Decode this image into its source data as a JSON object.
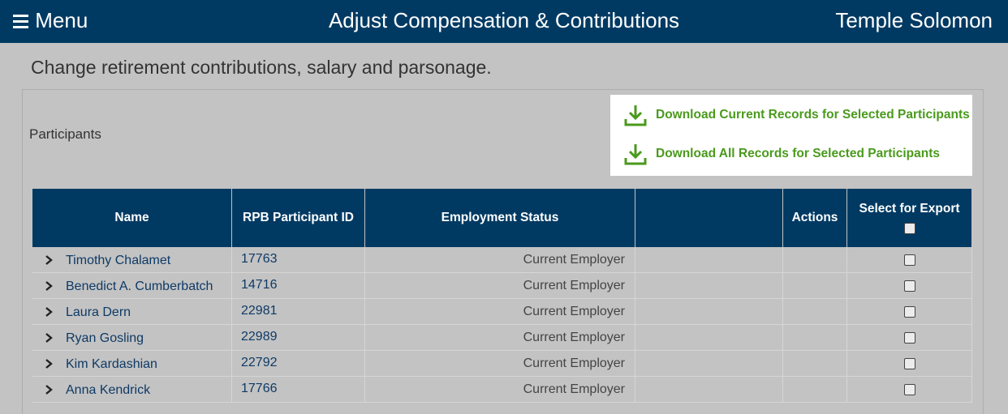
{
  "header": {
    "menu": "Menu",
    "title": "Adjust Compensation & Contributions",
    "user": "Temple Solomon"
  },
  "subtitle": "Change retirement contributions, salary and parsonage.",
  "panel": {
    "label": "Participants",
    "downloads": [
      "Download Current Records for Selected Participants",
      "Download All Records for Selected Participants"
    ]
  },
  "table": {
    "columns": [
      "Name",
      "RPB Participant ID",
      "Employment Status",
      "Actions",
      "Select for Export"
    ],
    "rows": [
      [
        "Timothy Chalamet",
        17763,
        "Current Employer"
      ],
      [
        "Benedict A. Cumberbatch",
        14716,
        "Current Employer"
      ],
      [
        "Laura Dern",
        22981,
        "Current Employer"
      ],
      [
        "Ryan Gosling",
        22989,
        "Current Employer"
      ],
      [
        "Kim Kardashian",
        22792,
        "Current Employer"
      ],
      [
        "Anna Kendrick",
        17766,
        "Current Employer"
      ]
    ]
  }
}
